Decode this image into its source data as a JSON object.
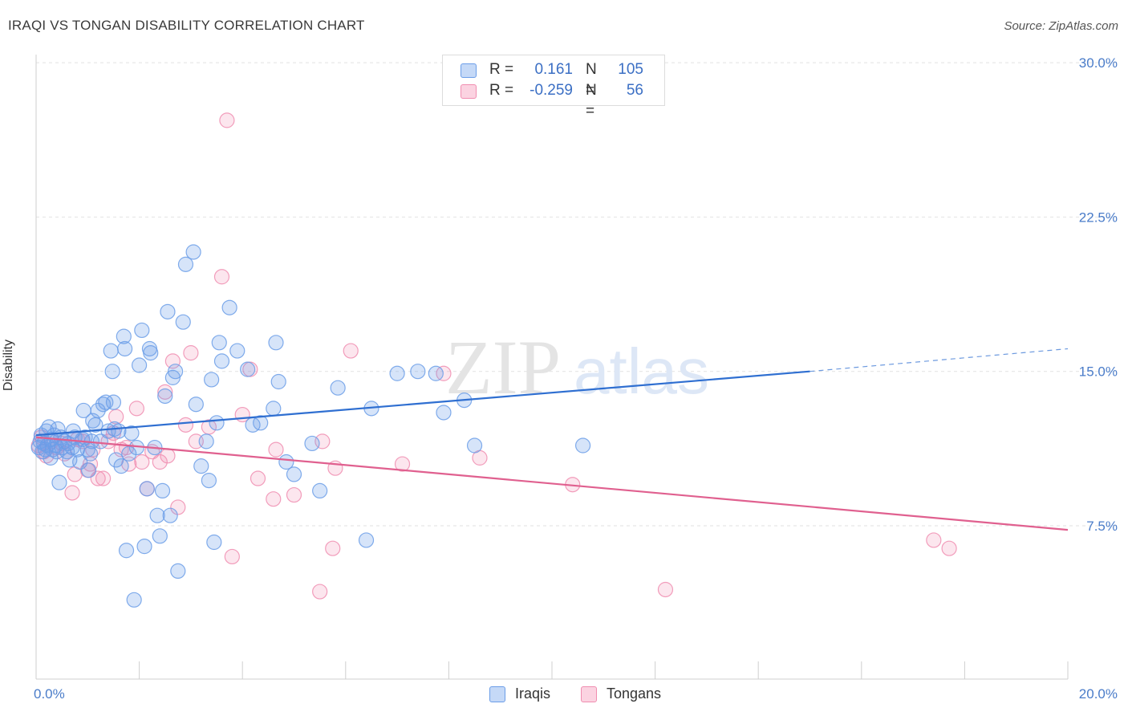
{
  "header": {
    "title": "IRAQI VS TONGAN DISABILITY CORRELATION CHART",
    "source": "Source: ZipAtlas.com"
  },
  "watermark": {
    "zip": "ZIP",
    "atlas": "atlas"
  },
  "legend": {
    "r_label": "R =",
    "n_label": "N =",
    "rows": [
      {
        "r": "0.161",
        "n": "105",
        "color": "#6b9de8"
      },
      {
        "r": "-0.259",
        "n": "56",
        "color": "#f08db0"
      }
    ]
  },
  "bottom_legend": [
    "Iraqis",
    "Tongans"
  ],
  "chart_data": {
    "type": "scatter",
    "title": "IRAQI VS TONGAN DISABILITY CORRELATION CHART",
    "ylabel": "Disability",
    "xlim": [
      0,
      20
    ],
    "ylim": [
      0,
      32
    ],
    "x_ticks": [
      "0.0%",
      "20.0%"
    ],
    "y_ticks": [
      {
        "value": 7.5,
        "label": "7.5%"
      },
      {
        "value": 15,
        "label": "15.0%"
      },
      {
        "value": 22.5,
        "label": "22.5%"
      },
      {
        "value": 30,
        "label": "30.0%"
      }
    ],
    "grid": true,
    "series": [
      {
        "name": "Iraqis",
        "color": "#6b9de8",
        "line_color": "#2f6fd1",
        "trend": {
          "x0": 0,
          "y0": 11.9,
          "x1": 15,
          "y1": 15.0,
          "dash_to": 20,
          "dash_y": 16.1
        },
        "points": [
          [
            0.05,
            11.3
          ],
          [
            0.08,
            11.6
          ],
          [
            0.1,
            11.9
          ],
          [
            0.12,
            11.1
          ],
          [
            0.15,
            11.5
          ],
          [
            0.18,
            11.2
          ],
          [
            0.2,
            12.1
          ],
          [
            0.22,
            11.4
          ],
          [
            0.25,
            12.3
          ],
          [
            0.28,
            10.8
          ],
          [
            0.3,
            11.7
          ],
          [
            0.32,
            11.2
          ],
          [
            0.35,
            11.9
          ],
          [
            0.38,
            11.4
          ],
          [
            0.4,
            11.1
          ],
          [
            0.42,
            12.2
          ],
          [
            0.45,
            9.6
          ],
          [
            0.48,
            11.8
          ],
          [
            0.5,
            11.3
          ],
          [
            0.55,
            11.6
          ],
          [
            0.6,
            11.1
          ],
          [
            0.62,
            11.5
          ],
          [
            0.65,
            10.7
          ],
          [
            0.7,
            11.3
          ],
          [
            0.72,
            12.1
          ],
          [
            0.75,
            11.8
          ],
          [
            0.8,
            11.2
          ],
          [
            0.85,
            10.6
          ],
          [
            0.9,
            11.7
          ],
          [
            0.92,
            13.1
          ],
          [
            0.95,
            11.8
          ],
          [
            1.0,
            11.2
          ],
          [
            1.02,
            10.2
          ],
          [
            1.05,
            11.0
          ],
          [
            1.08,
            11.6
          ],
          [
            1.1,
            12.6
          ],
          [
            1.15,
            12.4
          ],
          [
            1.2,
            13.1
          ],
          [
            1.25,
            11.6
          ],
          [
            1.3,
            13.4
          ],
          [
            1.35,
            13.5
          ],
          [
            1.4,
            12.1
          ],
          [
            1.45,
            16.0
          ],
          [
            1.48,
            15.0
          ],
          [
            1.5,
            13.5
          ],
          [
            1.52,
            12.2
          ],
          [
            1.55,
            10.7
          ],
          [
            1.6,
            12.1
          ],
          [
            1.65,
            10.4
          ],
          [
            1.7,
            16.7
          ],
          [
            1.72,
            16.1
          ],
          [
            1.75,
            6.3
          ],
          [
            1.8,
            11.0
          ],
          [
            1.85,
            12.0
          ],
          [
            1.9,
            3.9
          ],
          [
            1.95,
            11.3
          ],
          [
            2.0,
            15.3
          ],
          [
            2.05,
            17.0
          ],
          [
            2.1,
            6.5
          ],
          [
            2.15,
            9.3
          ],
          [
            2.2,
            16.1
          ],
          [
            2.22,
            15.9
          ],
          [
            2.3,
            11.3
          ],
          [
            2.35,
            8.0
          ],
          [
            2.4,
            7.0
          ],
          [
            2.45,
            9.2
          ],
          [
            2.5,
            13.8
          ],
          [
            2.55,
            17.9
          ],
          [
            2.6,
            8.0
          ],
          [
            2.65,
            14.7
          ],
          [
            2.7,
            15.0
          ],
          [
            2.75,
            5.3
          ],
          [
            2.85,
            17.4
          ],
          [
            2.9,
            20.2
          ],
          [
            3.05,
            20.8
          ],
          [
            3.1,
            13.4
          ],
          [
            3.2,
            10.4
          ],
          [
            3.3,
            11.6
          ],
          [
            3.35,
            9.7
          ],
          [
            3.4,
            14.6
          ],
          [
            3.45,
            6.7
          ],
          [
            3.5,
            12.5
          ],
          [
            3.55,
            16.4
          ],
          [
            3.6,
            15.5
          ],
          [
            3.75,
            18.1
          ],
          [
            3.9,
            16.0
          ],
          [
            4.1,
            15.1
          ],
          [
            4.2,
            12.4
          ],
          [
            4.35,
            12.5
          ],
          [
            4.6,
            13.2
          ],
          [
            4.65,
            16.4
          ],
          [
            4.7,
            14.5
          ],
          [
            4.85,
            10.6
          ],
          [
            5.0,
            10.0
          ],
          [
            5.35,
            11.5
          ],
          [
            5.5,
            9.2
          ],
          [
            5.85,
            14.2
          ],
          [
            6.4,
            6.8
          ],
          [
            6.5,
            13.2
          ],
          [
            7.0,
            14.9
          ],
          [
            7.4,
            15.0
          ],
          [
            7.75,
            14.9
          ],
          [
            7.9,
            13.0
          ],
          [
            8.3,
            13.6
          ],
          [
            8.5,
            11.4
          ],
          [
            10.6,
            11.4
          ]
        ]
      },
      {
        "name": "Tongans",
        "color": "#f08db0",
        "line_color": "#e0608f",
        "trend": {
          "x0": 0,
          "y0": 11.8,
          "x1": 20,
          "y1": 7.3
        },
        "points": [
          [
            0.05,
            11.4
          ],
          [
            0.1,
            11.8
          ],
          [
            0.15,
            11.1
          ],
          [
            0.2,
            10.9
          ],
          [
            0.3,
            11.6
          ],
          [
            0.4,
            11.3
          ],
          [
            0.5,
            11.5
          ],
          [
            0.55,
            11.0
          ],
          [
            0.7,
            9.1
          ],
          [
            0.75,
            10.0
          ],
          [
            0.8,
            11.7
          ],
          [
            0.9,
            11.6
          ],
          [
            1.0,
            10.2
          ],
          [
            1.05,
            10.5
          ],
          [
            1.1,
            11.2
          ],
          [
            1.2,
            9.8
          ],
          [
            1.3,
            9.8
          ],
          [
            1.4,
            11.6
          ],
          [
            1.5,
            12.0
          ],
          [
            1.55,
            12.8
          ],
          [
            1.65,
            11.2
          ],
          [
            1.75,
            11.3
          ],
          [
            1.8,
            10.5
          ],
          [
            1.95,
            13.2
          ],
          [
            2.05,
            10.6
          ],
          [
            2.15,
            9.3
          ],
          [
            2.25,
            11.1
          ],
          [
            2.4,
            10.6
          ],
          [
            2.5,
            14.0
          ],
          [
            2.55,
            10.9
          ],
          [
            2.65,
            15.5
          ],
          [
            2.75,
            8.4
          ],
          [
            2.9,
            12.4
          ],
          [
            3.0,
            15.9
          ],
          [
            3.1,
            11.6
          ],
          [
            3.35,
            12.3
          ],
          [
            3.6,
            19.6
          ],
          [
            3.7,
            27.2
          ],
          [
            3.8,
            6.0
          ],
          [
            4.0,
            12.9
          ],
          [
            4.15,
            15.1
          ],
          [
            4.3,
            9.8
          ],
          [
            4.6,
            8.8
          ],
          [
            4.65,
            11.2
          ],
          [
            5.0,
            9.0
          ],
          [
            5.5,
            4.3
          ],
          [
            5.55,
            11.6
          ],
          [
            5.75,
            6.4
          ],
          [
            5.8,
            10.3
          ],
          [
            6.1,
            16.0
          ],
          [
            7.1,
            10.5
          ],
          [
            7.9,
            14.9
          ],
          [
            8.6,
            10.8
          ],
          [
            10.4,
            9.5
          ],
          [
            12.2,
            4.4
          ],
          [
            17.4,
            6.8
          ],
          [
            17.7,
            6.4
          ]
        ]
      }
    ]
  }
}
